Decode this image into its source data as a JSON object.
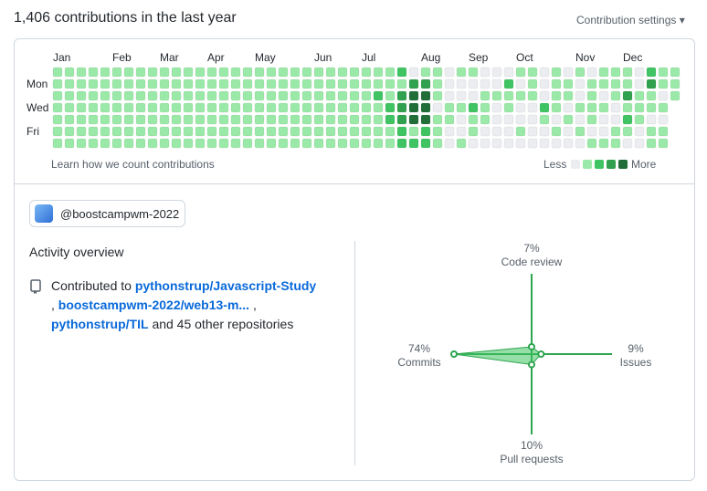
{
  "header": {
    "title": "1,406 contributions in the last year",
    "settings": "Contribution settings"
  },
  "contributions": {
    "months": [
      "Jan",
      "Feb",
      "Mar",
      "Apr",
      "May",
      "Jun",
      "Jul",
      "Aug",
      "Sep",
      "Oct",
      "Nov",
      "Dec"
    ],
    "days": [
      "Mon",
      "Wed",
      "Fri"
    ],
    "colors": [
      "#ebedf0",
      "#9be9a8",
      "#40c463",
      "#30a14e",
      "#216e39"
    ],
    "weeks": [
      [
        1,
        1,
        1,
        1,
        1,
        1,
        1
      ],
      [
        1,
        1,
        1,
        1,
        1,
        1,
        1
      ],
      [
        1,
        1,
        1,
        1,
        1,
        1,
        1
      ],
      [
        1,
        1,
        1,
        1,
        1,
        1,
        1
      ],
      [
        1,
        1,
        1,
        1,
        1,
        1,
        1
      ],
      [
        1,
        1,
        1,
        1,
        1,
        1,
        1
      ],
      [
        1,
        1,
        1,
        1,
        1,
        1,
        1
      ],
      [
        1,
        1,
        1,
        1,
        1,
        1,
        1
      ],
      [
        1,
        1,
        1,
        1,
        1,
        1,
        1
      ],
      [
        1,
        1,
        1,
        1,
        1,
        1,
        1
      ],
      [
        1,
        1,
        1,
        1,
        1,
        1,
        1
      ],
      [
        1,
        1,
        1,
        1,
        1,
        1,
        1
      ],
      [
        1,
        1,
        1,
        1,
        1,
        1,
        1
      ],
      [
        1,
        1,
        1,
        1,
        1,
        1,
        1
      ],
      [
        1,
        1,
        1,
        1,
        1,
        1,
        1
      ],
      [
        1,
        1,
        1,
        1,
        1,
        1,
        1
      ],
      [
        1,
        1,
        1,
        1,
        1,
        1,
        1
      ],
      [
        1,
        1,
        1,
        1,
        1,
        1,
        1
      ],
      [
        1,
        1,
        1,
        1,
        1,
        1,
        1
      ],
      [
        1,
        1,
        1,
        1,
        1,
        1,
        1
      ],
      [
        1,
        1,
        1,
        1,
        1,
        1,
        1
      ],
      [
        1,
        1,
        1,
        1,
        1,
        1,
        1
      ],
      [
        1,
        1,
        1,
        1,
        1,
        1,
        1
      ],
      [
        1,
        1,
        1,
        1,
        1,
        1,
        1
      ],
      [
        1,
        1,
        1,
        1,
        1,
        1,
        1
      ],
      [
        1,
        1,
        1,
        1,
        1,
        1,
        1
      ],
      [
        1,
        1,
        1,
        1,
        1,
        1,
        1
      ],
      [
        1,
        1,
        2,
        1,
        1,
        1,
        1
      ],
      [
        1,
        1,
        1,
        2,
        2,
        1,
        1
      ],
      [
        2,
        1,
        3,
        3,
        3,
        2,
        2
      ],
      [
        0,
        3,
        4,
        4,
        4,
        1,
        2
      ],
      [
        1,
        3,
        4,
        4,
        4,
        2,
        2
      ],
      [
        1,
        1,
        1,
        0,
        1,
        1,
        1
      ],
      [
        0,
        0,
        0,
        1,
        1,
        0,
        0
      ],
      [
        1,
        0,
        0,
        1,
        0,
        0,
        1
      ],
      [
        1,
        0,
        0,
        2,
        1,
        1,
        0
      ],
      [
        0,
        0,
        1,
        1,
        1,
        0,
        0
      ],
      [
        0,
        0,
        1,
        0,
        0,
        0,
        0
      ],
      [
        0,
        2,
        1,
        1,
        0,
        0,
        0
      ],
      [
        1,
        0,
        1,
        0,
        0,
        1,
        0
      ],
      [
        1,
        1,
        1,
        0,
        0,
        0,
        0
      ],
      [
        0,
        0,
        0,
        2,
        1,
        0,
        0
      ],
      [
        1,
        1,
        1,
        1,
        0,
        1,
        0
      ],
      [
        0,
        1,
        1,
        0,
        1,
        0,
        0
      ],
      [
        1,
        0,
        0,
        1,
        0,
        1,
        0
      ],
      [
        0,
        1,
        1,
        1,
        1,
        0,
        1
      ],
      [
        1,
        1,
        0,
        1,
        0,
        0,
        1
      ],
      [
        1,
        1,
        1,
        0,
        0,
        1,
        1
      ],
      [
        1,
        1,
        3,
        1,
        2,
        1,
        0
      ],
      [
        0,
        0,
        1,
        1,
        1,
        0,
        0
      ],
      [
        2,
        3,
        1,
        1,
        0,
        1,
        1
      ],
      [
        1,
        1,
        0,
        1,
        0,
        1,
        1
      ],
      [
        1,
        1,
        1
      ]
    ],
    "learn": "Learn how we count contributions",
    "less": "Less",
    "more": "More"
  },
  "org": "@boostcampwm-2022",
  "activity": {
    "title": "Activity overview",
    "prefix": "Contributed to",
    "repos": [
      "pythonstrup/Javascript-Study",
      "boostcampwm-2022/web13-m...",
      "pythonstrup/TIL"
    ],
    "separators": [
      ",",
      ","
    ],
    "suffix": "and 45 other repositories"
  },
  "chart_data": {
    "type": "radar",
    "categories": [
      "Code review",
      "Issues",
      "Pull requests",
      "Commits"
    ],
    "values": [
      7,
      9,
      10,
      74
    ],
    "value_labels": [
      "7%",
      "9%",
      "10%",
      "74%"
    ],
    "color": "#2da44e"
  }
}
